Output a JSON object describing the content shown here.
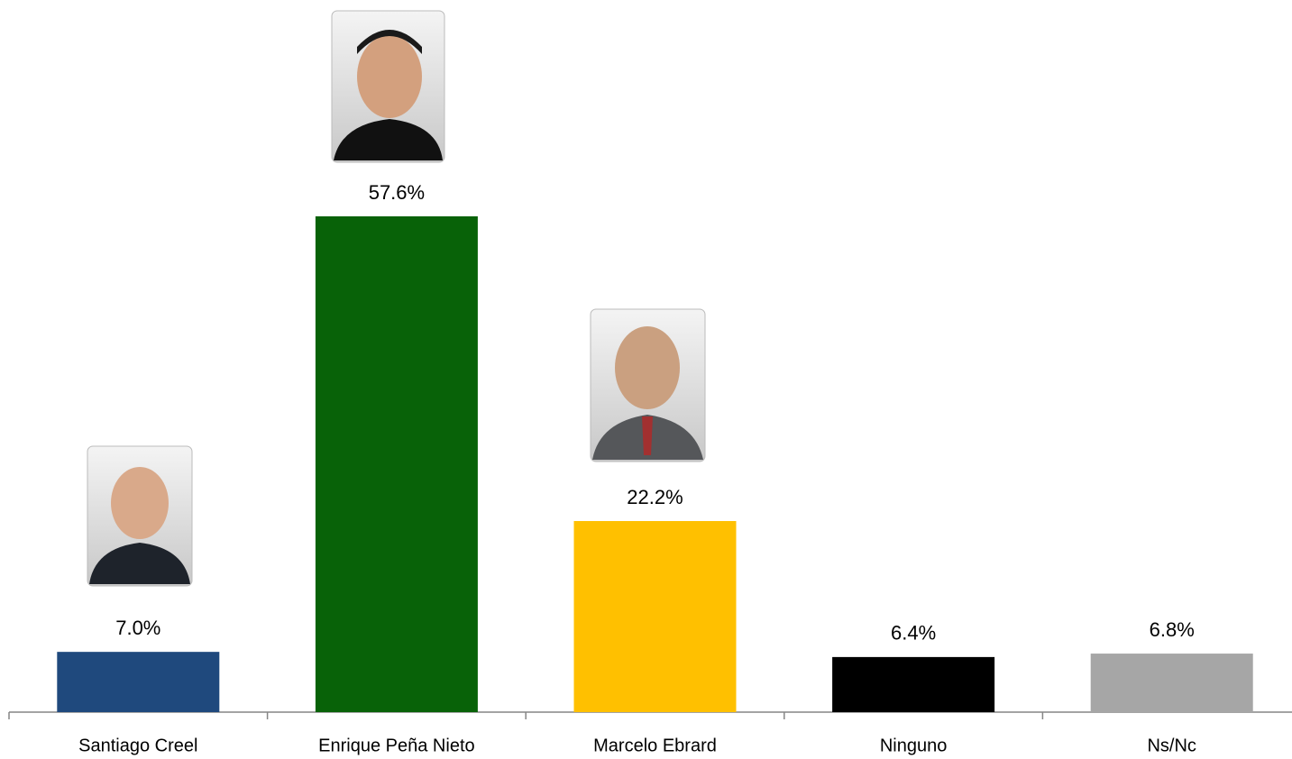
{
  "chart_data": {
    "type": "bar",
    "categories": [
      "Santiago Creel",
      "Enrique Peña Nieto",
      "Marcelo Ebrard",
      "Ninguno",
      "Ns/Nc"
    ],
    "values": [
      7.0,
      57.6,
      22.2,
      6.4,
      6.8
    ],
    "value_labels": [
      "7.0%",
      "57.6%",
      "22.2%",
      "6.4%",
      "6.8%"
    ],
    "colors": [
      "#1f497d",
      "#086208",
      "#ffc000",
      "#000000",
      "#a6a6a6"
    ]
  }
}
